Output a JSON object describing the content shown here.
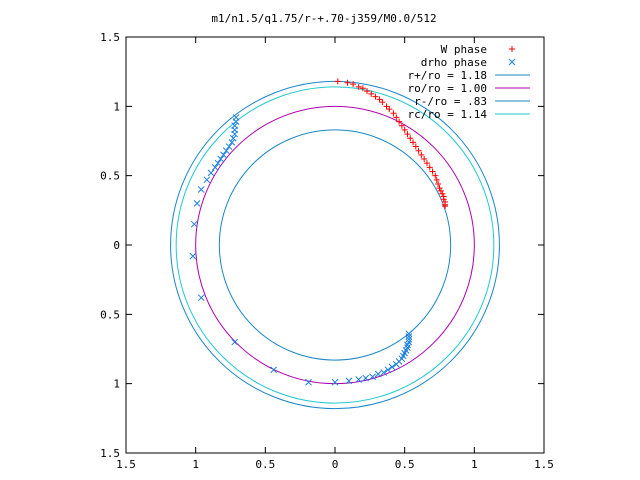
{
  "chart_data": {
    "type": "scatter",
    "title": "m1/n1.5/q1.75/r-+.70-j359/M0.0/512",
    "xlabel": "",
    "ylabel": "",
    "xlim": [
      -1.5,
      1.5
    ],
    "ylim": [
      -1.5,
      1.5
    ],
    "x_tick_values": [
      -1.5,
      -1,
      -0.5,
      0,
      0.5,
      1,
      1.5
    ],
    "x_tick_labels": [
      "1.5",
      "1",
      "0.5",
      "0",
      "0.5",
      "1",
      "1.5"
    ],
    "y_tick_values": [
      1.5,
      1,
      0.5,
      0,
      -0.5,
      -1,
      -1.5
    ],
    "y_tick_labels": [
      "1.5",
      "1",
      "0.5",
      "0",
      "0.5",
      "1",
      "1.5"
    ],
    "grid": false,
    "legend_position": "top-right",
    "circles": [
      {
        "name": "r+/ro = 1.18",
        "radius": 1.18,
        "color": "#1a86c8"
      },
      {
        "name": "ro/ro = 1.00",
        "radius": 1.0,
        "color": "#b000b0"
      },
      {
        "name": "r-/ro =  .83",
        "radius": 0.83,
        "color": "#1a86c8"
      },
      {
        "name": "rc/ro = 1.14",
        "radius": 1.14,
        "color": "#22c8d0"
      }
    ],
    "series": [
      {
        "name": "W phase",
        "marker": "+",
        "color": "#ff0000",
        "points": [
          [
            0.02,
            1.18
          ],
          [
            0.09,
            1.17
          ],
          [
            0.13,
            1.16
          ],
          [
            0.17,
            1.14
          ],
          [
            0.2,
            1.13
          ],
          [
            0.23,
            1.11
          ],
          [
            0.26,
            1.09
          ],
          [
            0.29,
            1.07
          ],
          [
            0.32,
            1.05
          ],
          [
            0.34,
            1.03
          ],
          [
            0.37,
            1.0
          ],
          [
            0.39,
            0.98
          ],
          [
            0.42,
            0.95
          ],
          [
            0.44,
            0.92
          ],
          [
            0.46,
            0.89
          ],
          [
            0.48,
            0.86
          ],
          [
            0.5,
            0.83
          ],
          [
            0.52,
            0.8
          ],
          [
            0.54,
            0.77
          ],
          [
            0.56,
            0.74
          ],
          [
            0.58,
            0.71
          ],
          [
            0.6,
            0.68
          ],
          [
            0.62,
            0.65
          ],
          [
            0.64,
            0.62
          ],
          [
            0.66,
            0.59
          ],
          [
            0.68,
            0.56
          ],
          [
            0.7,
            0.53
          ],
          [
            0.72,
            0.5
          ],
          [
            0.73,
            0.47
          ],
          [
            0.74,
            0.44
          ],
          [
            0.75,
            0.41
          ],
          [
            0.76,
            0.39
          ],
          [
            0.77,
            0.37
          ],
          [
            0.78,
            0.35
          ],
          [
            0.78,
            0.33
          ],
          [
            0.79,
            0.31
          ],
          [
            0.79,
            0.29
          ],
          [
            0.79,
            0.28
          ]
        ]
      },
      {
        "name": "drho phase",
        "marker": "x",
        "color": "#1a7fe0",
        "points": [
          [
            -0.71,
            0.92
          ],
          [
            -0.71,
            0.89
          ],
          [
            -0.72,
            0.86
          ],
          [
            -0.72,
            0.83
          ],
          [
            -0.72,
            0.8
          ],
          [
            -0.73,
            0.77
          ],
          [
            -0.74,
            0.74
          ],
          [
            -0.76,
            0.71
          ],
          [
            -0.78,
            0.68
          ],
          [
            -0.8,
            0.65
          ],
          [
            -0.82,
            0.62
          ],
          [
            -0.84,
            0.59
          ],
          [
            -0.86,
            0.56
          ],
          [
            -0.89,
            0.52
          ],
          [
            -0.92,
            0.47
          ],
          [
            -0.96,
            0.4
          ],
          [
            -0.99,
            0.3
          ],
          [
            -1.01,
            0.15
          ],
          [
            -1.02,
            -0.08
          ],
          [
            -0.96,
            -0.38
          ],
          [
            -0.72,
            -0.7
          ],
          [
            -0.44,
            -0.9
          ],
          [
            -0.19,
            -0.99
          ],
          [
            0.0,
            -0.99
          ],
          [
            0.1,
            -0.98
          ],
          [
            0.17,
            -0.97
          ],
          [
            0.22,
            -0.96
          ],
          [
            0.27,
            -0.95
          ],
          [
            0.31,
            -0.93
          ],
          [
            0.35,
            -0.92
          ],
          [
            0.38,
            -0.9
          ],
          [
            0.41,
            -0.88
          ],
          [
            0.44,
            -0.86
          ],
          [
            0.46,
            -0.84
          ],
          [
            0.48,
            -0.82
          ],
          [
            0.49,
            -0.8
          ],
          [
            0.5,
            -0.78
          ],
          [
            0.51,
            -0.76
          ],
          [
            0.52,
            -0.74
          ],
          [
            0.52,
            -0.72
          ],
          [
            0.53,
            -0.7
          ],
          [
            0.53,
            -0.68
          ],
          [
            0.53,
            -0.66
          ],
          [
            0.53,
            -0.64
          ]
        ]
      }
    ]
  }
}
